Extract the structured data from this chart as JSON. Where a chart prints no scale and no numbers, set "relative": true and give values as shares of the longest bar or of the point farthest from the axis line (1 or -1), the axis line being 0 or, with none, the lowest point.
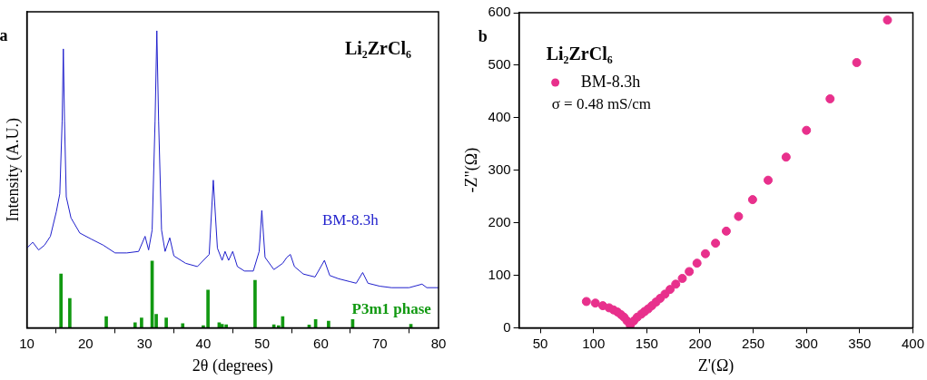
{
  "chart_data": [
    {
      "type": "line",
      "relative": true,
      "xlabel": "2θ (degrees)",
      "ylabel": "Intensity (A.U.)",
      "xlim": [
        10,
        80
      ],
      "xticks": [
        10,
        20,
        30,
        40,
        50,
        60,
        70,
        80
      ],
      "tick_labels": "x",
      "grid": false,
      "annotations": [
        "a",
        "Li₂ZrCl₆"
      ],
      "series": [
        {
          "name": "BM-8.3h",
          "color": "#1f1fcc",
          "x": [
            10,
            11,
            12,
            13,
            14,
            15,
            15.6,
            16.0,
            16.2,
            16.4,
            16.7,
            17.5,
            19,
            21,
            23,
            25,
            27,
            29,
            30.1,
            30.7,
            31.3,
            31.8,
            32.1,
            32.4,
            32.9,
            33.5,
            34.3,
            35,
            37,
            39,
            41,
            41.7,
            42.4,
            43.2,
            43.7,
            44.3,
            45.0,
            45.8,
            47,
            48.5,
            49.5,
            49.95,
            50.5,
            52,
            53.5,
            54.2,
            54.8,
            55.5,
            57,
            59,
            60.6,
            61.5,
            63,
            65,
            66,
            67.1,
            68,
            70,
            72,
            75,
            77.2,
            78,
            80
          ],
          "values": [
            0.268,
            0.288,
            0.262,
            0.278,
            0.308,
            0.39,
            0.451,
            0.697,
            0.939,
            0.697,
            0.441,
            0.37,
            0.319,
            0.298,
            0.278,
            0.252,
            0.252,
            0.257,
            0.308,
            0.262,
            0.329,
            0.697,
            1,
            0.697,
            0.329,
            0.257,
            0.303,
            0.242,
            0.217,
            0.206,
            0.247,
            0.497,
            0.268,
            0.227,
            0.257,
            0.227,
            0.257,
            0.206,
            0.191,
            0.191,
            0.257,
            0.395,
            0.237,
            0.196,
            0.217,
            0.237,
            0.247,
            0.206,
            0.181,
            0.171,
            0.227,
            0.176,
            0.165,
            0.155,
            0.15,
            0.186,
            0.15,
            0.14,
            0.135,
            0.135,
            0.147,
            0.135,
            0.135
          ]
        },
        {
          "name": "P3m1 phase",
          "type": "bar",
          "color": "#119911",
          "x": [
            15.8,
            17.3,
            23.5,
            28.4,
            29.5,
            31.3,
            32.0,
            33.7,
            36.5,
            40.0,
            40.8,
            42.7,
            43.2,
            43.9,
            48.8,
            52,
            52.8,
            53.5,
            58,
            59.1,
            61.3,
            65.4,
            75.3
          ],
          "values": [
            0.181,
            0.099,
            0.038,
            0.017,
            0.033,
            0.225,
            0.045,
            0.033,
            0.014,
            0.007,
            0.127,
            0.017,
            0.012,
            0.01,
            0.16,
            0.01,
            0.007,
            0.038,
            0.009,
            0.028,
            0.022,
            0.028,
            0.012
          ]
        }
      ]
    },
    {
      "type": "scatter",
      "xlabel": "Z'(Ω)",
      "ylabel": "-Z\"(Ω)",
      "xlim": [
        30,
        400
      ],
      "xticks": [
        50,
        100,
        150,
        200,
        250,
        300,
        350,
        400
      ],
      "ylim": [
        0,
        600
      ],
      "yticks": [
        0,
        100,
        200,
        300,
        400,
        500,
        600
      ],
      "grid": false,
      "legend": "top left",
      "legend_title": "Li₂ZrCl₆",
      "marker": "circle",
      "annotations": [
        "b",
        "σ = 0.48 mS/cm"
      ],
      "series": [
        {
          "name": "BM-8.3h",
          "color": "#e8308c",
          "x": [
            93.3,
            101.7,
            108.7,
            114.6,
            118.8,
            122.5,
            125.8,
            128.7,
            131.5,
            134.5,
            137.8,
            141.0,
            144.9,
            148.0,
            151.4,
            154.8,
            158.7,
            162.6,
            167.1,
            171.9,
            177.2,
            183.4,
            189.9,
            197.2,
            205.1,
            214.6,
            224.7,
            236.2,
            249.4,
            264.0,
            280.9,
            300.0,
            322.2,
            347.2,
            376.1
          ],
          "values": [
            50,
            47,
            42,
            38,
            34,
            30,
            25,
            20,
            13,
            5,
            13,
            20,
            26,
            31,
            36,
            42,
            49,
            56,
            64,
            73,
            83,
            94,
            107,
            123,
            141,
            161,
            184,
            212,
            244,
            281,
            325,
            376,
            436,
            505,
            586
          ]
        }
      ]
    }
  ]
}
